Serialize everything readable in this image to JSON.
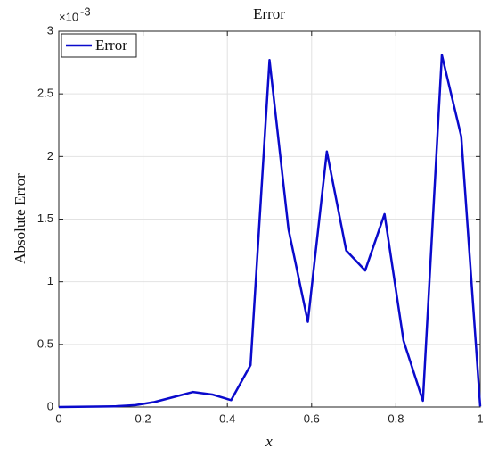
{
  "chart_data": {
    "type": "line",
    "title": "Error",
    "x_label": "x",
    "y_label": "Absolute Error",
    "y_multiplier": "×10",
    "y_multiplier_exponent": "-3",
    "x": [
      0,
      0.045,
      0.091,
      0.136,
      0.182,
      0.227,
      0.273,
      0.318,
      0.364,
      0.409,
      0.455,
      0.5,
      0.545,
      0.591,
      0.636,
      0.682,
      0.727,
      0.773,
      0.818,
      0.864,
      0.909,
      0.955,
      1
    ],
    "series": [
      {
        "name": "Error",
        "color": "#0a0acc",
        "values": [
          0,
          0.002,
          0.004,
          0.006,
          0.015,
          0.04,
          0.08,
          0.12,
          0.1,
          0.055,
          0.335,
          2.77,
          1.42,
          0.68,
          2.04,
          1.25,
          1.09,
          1.54,
          0.53,
          0.05,
          2.81,
          2.16,
          0.005
        ]
      }
    ],
    "xlim": [
      0,
      1
    ],
    "xticks": [
      0,
      0.2,
      0.4,
      0.6,
      0.8,
      1
    ],
    "ylim": [
      0,
      3
    ],
    "yticks": [
      0,
      0.5,
      1,
      1.5,
      2,
      2.5,
      3
    ],
    "grid": true,
    "legend": "top-left"
  }
}
